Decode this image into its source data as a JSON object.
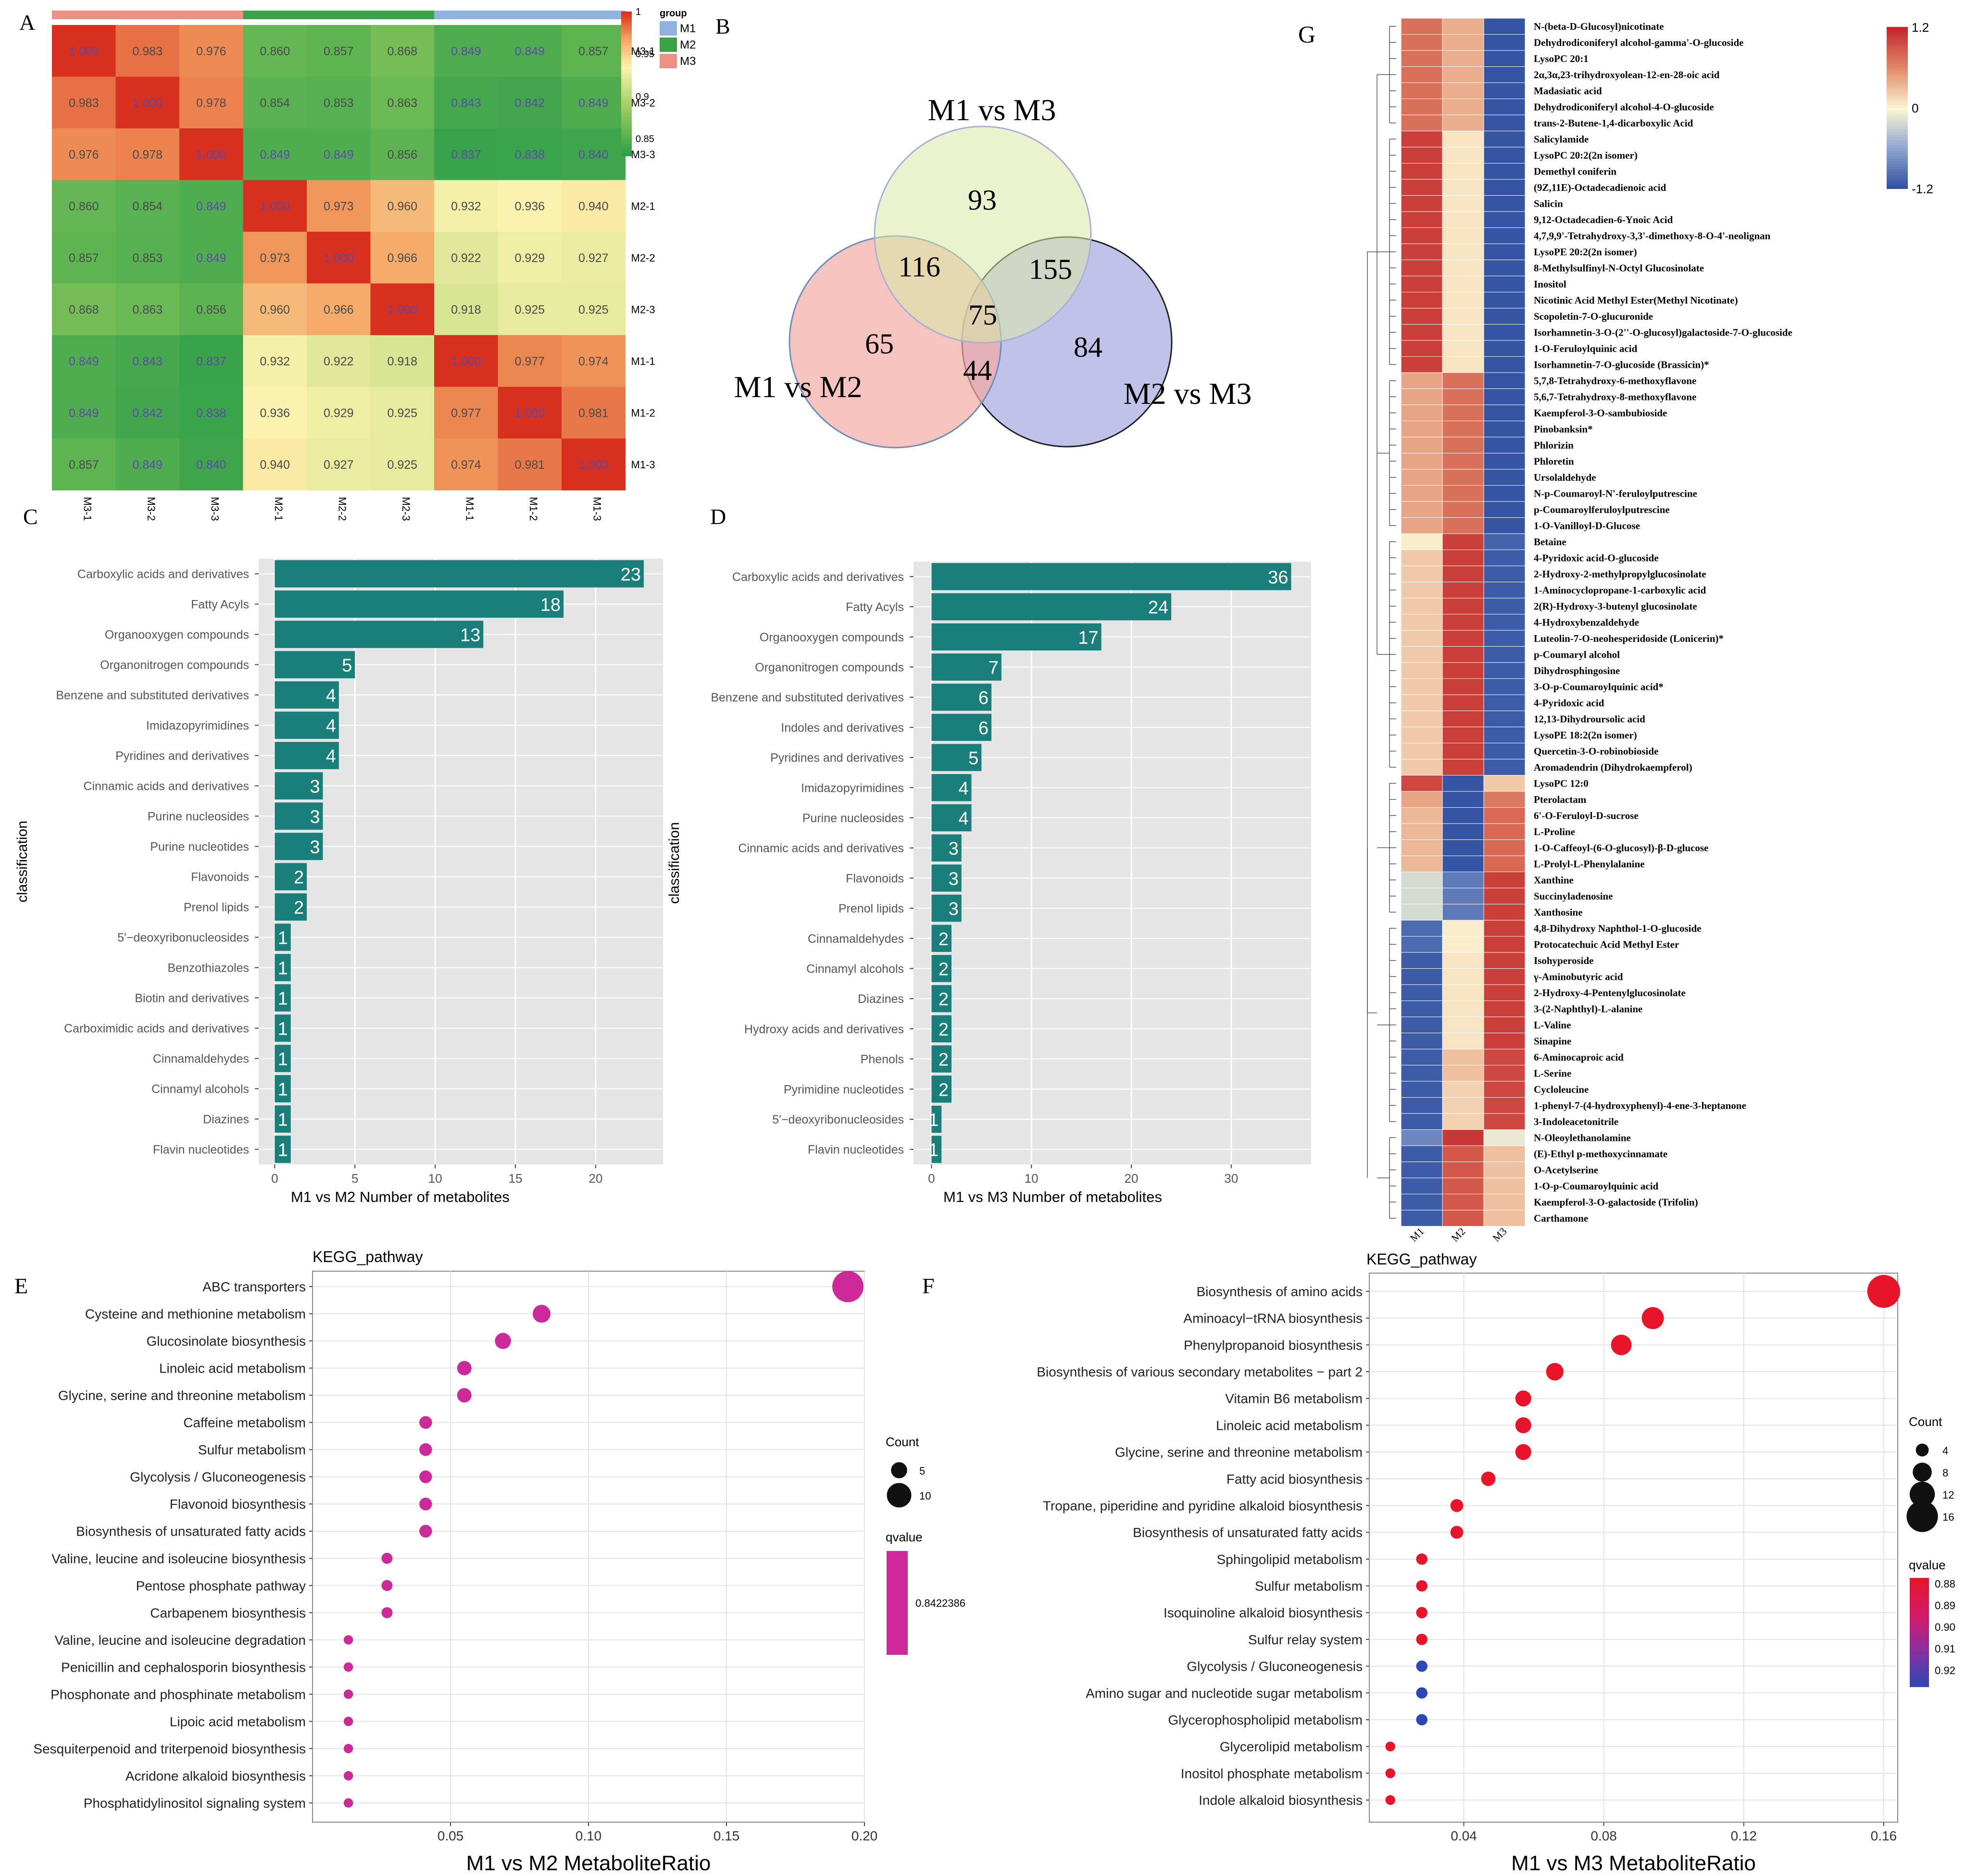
{
  "chart_data": [
    {
      "panel": "A",
      "type": "heatmap",
      "title": "",
      "rows": [
        "M3-1",
        "M3-2",
        "M3-3",
        "M2-1",
        "M2-2",
        "M2-3",
        "M1-1",
        "M1-2",
        "M1-3"
      ],
      "cols": [
        "M3-1",
        "M3-2",
        "M3-3",
        "M2-1",
        "M2-2",
        "M2-3",
        "M1-1",
        "M1-2",
        "M1-3"
      ],
      "values": [
        [
          1.0,
          0.983,
          0.976,
          0.86,
          0.857,
          0.868,
          0.849,
          0.849,
          0.857
        ],
        [
          0.983,
          1.0,
          0.978,
          0.854,
          0.853,
          0.863,
          0.843,
          0.842,
          0.849
        ],
        [
          0.976,
          0.978,
          1.0,
          0.849,
          0.849,
          0.856,
          0.837,
          0.838,
          0.84
        ],
        [
          0.86,
          0.854,
          0.849,
          1.0,
          0.973,
          0.96,
          0.932,
          0.936,
          0.94
        ],
        [
          0.857,
          0.853,
          0.849,
          0.973,
          1.0,
          0.966,
          0.922,
          0.929,
          0.927
        ],
        [
          0.868,
          0.863,
          0.856,
          0.96,
          0.966,
          1.0,
          0.918,
          0.925,
          0.925
        ],
        [
          0.849,
          0.843,
          0.837,
          0.932,
          0.922,
          0.918,
          1.0,
          0.977,
          0.974
        ],
        [
          0.849,
          0.842,
          0.838,
          0.936,
          0.929,
          0.925,
          0.977,
          1.0,
          0.981
        ],
        [
          0.857,
          0.849,
          0.84,
          0.94,
          0.927,
          0.925,
          0.974,
          0.981,
          1.0
        ]
      ],
      "value_labels": [
        [
          "1.000",
          "0.983",
          "0.976",
          "0.860",
          "0.857",
          "0.868",
          "0.849",
          "0.849",
          "0.857"
        ],
        [
          "0.983",
          "1.000",
          "0.978",
          "0.854",
          "0.853",
          "0.863",
          "0.843",
          "0.842",
          "0.849"
        ],
        [
          "0.976",
          "0.978",
          "1.000",
          "0.849",
          "0.849",
          "0.856",
          "0.837",
          "0.838",
          "0.840"
        ],
        [
          "0.860",
          "0.854",
          "0.849",
          "1.000",
          "0.973",
          "0.960",
          "0.932",
          "0.936",
          "0.940"
        ],
        [
          "0.857",
          "0.853",
          "0.849",
          "0.973",
          "1.000",
          "0.966",
          "0.922",
          "0.929",
          "0.927"
        ],
        [
          "0.868",
          "0.863",
          "0.856",
          "0.960",
          "0.966",
          "1.000",
          "0.918",
          "0.925",
          "0.925"
        ],
        [
          "0.849",
          "0.843",
          "0.837",
          "0.932",
          "0.922",
          "0.918",
          "1.000",
          "0.977",
          "0.974"
        ],
        [
          "0.849",
          "0.842",
          "0.838",
          "0.936",
          "0.929",
          "0.925",
          "0.977",
          "1.000",
          "0.981"
        ],
        [
          "0.857",
          "0.849",
          "0.840",
          "0.940",
          "0.927",
          "0.925",
          "0.974",
          "0.981",
          "1.000"
        ]
      ],
      "col_groups": [
        "M3",
        "M3",
        "M3",
        "M2",
        "M2",
        "M2",
        "M1",
        "M1",
        "M1"
      ],
      "colorbar_ticks": [
        "1",
        "0.95",
        "0.9",
        "0.85"
      ],
      "group_legend_title": "group",
      "group_legend": [
        "M1",
        "M2",
        "M3"
      ],
      "group_colors": {
        "M1": "#8fb3e0",
        "M2": "#3aa348",
        "M3": "#ee8f86"
      },
      "vlim": [
        0.83,
        1.0
      ]
    },
    {
      "panel": "B",
      "type": "venn",
      "sets": [
        "M1 vs M3",
        "M1 vs M2",
        "M2 vs M3"
      ],
      "regions": {
        "M1vsM3_only": 93,
        "M1vsM2_only": 65,
        "M2vsM3_only": 84,
        "M1vsM3_and_M1vsM2": 116,
        "M1vsM3_and_M2vsM3": 155,
        "M1vsM2_and_M2vsM3": 44,
        "all_three": 75
      },
      "colors": {
        "M1 vs M3": "#d9eaa6",
        "M1 vs M2": "#f2a9a4",
        "M2 vs M3": "#a7a8e0"
      }
    },
    {
      "panel": "C",
      "type": "bar",
      "orientation": "horizontal",
      "categories": [
        "Carboxylic acids and derivatives",
        "Fatty Acyls",
        "Organooxygen compounds",
        "Organonitrogen compounds",
        "Benzene and substituted derivatives",
        "Imidazopyrimidines",
        "Pyridines and derivatives",
        "Cinnamic acids and derivatives",
        "Purine nucleosides",
        "Purine nucleotides",
        "Flavonoids",
        "Prenol lipids",
        "5'−deoxyribonucleosides",
        "Benzothiazoles",
        "Biotin and derivatives",
        "Carboximidic acids and derivatives",
        "Cinnamaldehydes",
        "Cinnamyl alcohols",
        "Diazines",
        "Flavin nucleotides"
      ],
      "values": [
        23,
        18,
        13,
        5,
        4,
        4,
        4,
        3,
        3,
        3,
        2,
        2,
        1,
        1,
        1,
        1,
        1,
        1,
        1,
        1
      ],
      "xlabel": "M1 vs M2 Number of metabolites",
      "ylabel": "classification",
      "xticks": [
        "0",
        "5",
        "10",
        "15",
        "20"
      ],
      "xlim": [
        -1,
        24.2
      ],
      "color": "#1a7f7a"
    },
    {
      "panel": "D",
      "type": "bar",
      "orientation": "horizontal",
      "categories": [
        "Carboxylic acids and derivatives",
        "Fatty Acyls",
        "Organooxygen compounds",
        "Organonitrogen compounds",
        "Benzene and substituted derivatives",
        "Indoles and derivatives",
        "Pyridines and derivatives",
        "Imidazopyrimidines",
        "Purine nucleosides",
        "Cinnamic acids and derivatives",
        "Flavonoids",
        "Prenol lipids",
        "Cinnamaldehydes",
        "Cinnamyl alcohols",
        "Diazines",
        "Hydroxy acids and derivatives",
        "Phenols",
        "Pyrimidine nucleotides",
        "5'−deoxyribonucleosides",
        "Flavin nucleotides"
      ],
      "values": [
        36,
        24,
        17,
        7,
        6,
        6,
        5,
        4,
        4,
        3,
        3,
        3,
        2,
        2,
        2,
        2,
        2,
        2,
        1,
        1
      ],
      "xlabel": "M1 vs M3 Number of metabolites",
      "ylabel": "classification",
      "xticks": [
        "0",
        "10",
        "20",
        "30"
      ],
      "xlim": [
        -1.8,
        38
      ],
      "color": "#1a7f7a"
    },
    {
      "panel": "E",
      "type": "scatter",
      "title": "KEGG_pathway",
      "categories": [
        "ABC transporters",
        "Cysteine and methionine metabolism",
        "Glucosinolate biosynthesis",
        "Linoleic acid metabolism",
        "Glycine, serine and threonine metabolism",
        "Caffeine metabolism",
        "Sulfur metabolism",
        "Glycolysis / Gluconeogenesis",
        "Flavonoid biosynthesis",
        "Biosynthesis of unsaturated fatty acids",
        "Valine, leucine and isoleucine biosynthesis",
        "Pentose phosphate pathway",
        "Carbapenem biosynthesis",
        "Valine, leucine and isoleucine degradation",
        "Penicillin and cephalosporin biosynthesis",
        "Phosphonate and phosphinate metabolism",
        "Lipoic acid metabolism",
        "Sesquiterpenoid and triterpenoid biosynthesis",
        "Acridone alkaloid biosynthesis",
        "Phosphatidylinositol signaling system"
      ],
      "x": [
        0.194,
        0.083,
        0.069,
        0.055,
        0.055,
        0.041,
        0.041,
        0.041,
        0.041,
        0.041,
        0.027,
        0.027,
        0.027,
        0.013,
        0.013,
        0.013,
        0.013,
        0.013,
        0.013,
        0.013
      ],
      "count": [
        14,
        6,
        5,
        4,
        4,
        3,
        3,
        3,
        3,
        3,
        2,
        2,
        2,
        1,
        1,
        1,
        1,
        1,
        1,
        1
      ],
      "qvalue": 0.8422386,
      "xlabel": "M1 vs M2 MetaboliteRatio",
      "xticks": [
        "0.05",
        "0.10",
        "0.15",
        "0.20"
      ],
      "xlim": [
        0.0,
        0.2
      ],
      "size_legend_title": "Count",
      "size_legend": [
        "5",
        "10"
      ],
      "color_legend_title": "qvalue",
      "color_legend_value": "0.8422386",
      "color": "#cc2a9a"
    },
    {
      "panel": "F",
      "type": "scatter",
      "title": "KEGG_pathway",
      "categories": [
        "Biosynthesis of amino acids",
        "Aminoacyl−tRNA biosynthesis",
        "Phenylpropanoid biosynthesis",
        "Biosynthesis of various secondary metabolites − part 2",
        "Vitamin B6 metabolism",
        "Linoleic acid metabolism",
        "Glycine, serine and threonine metabolism",
        "Fatty acid biosynthesis",
        "Tropane, piperidine and pyridine alkaloid biosynthesis",
        "Biosynthesis of unsaturated fatty acids",
        "Sphingolipid metabolism",
        "Sulfur metabolism",
        "Isoquinoline alkaloid biosynthesis",
        "Sulfur relay system",
        "Glycolysis / Gluconeogenesis",
        "Amino sugar and nucleotide sugar metabolism",
        "Glycerophospholipid metabolism",
        "Glycerolipid metabolism",
        "Inositol phosphate metabolism",
        "Indole alkaloid biosynthesis"
      ],
      "x": [
        0.16,
        0.094,
        0.085,
        0.066,
        0.057,
        0.057,
        0.057,
        0.047,
        0.038,
        0.038,
        0.028,
        0.028,
        0.028,
        0.028,
        0.028,
        0.028,
        0.028,
        0.019,
        0.019,
        0.019
      ],
      "count": [
        17,
        10,
        9,
        7,
        6,
        6,
        6,
        5,
        4,
        4,
        3,
        3,
        3,
        3,
        3,
        3,
        3,
        2,
        2,
        2
      ],
      "qvalue": [
        0.876,
        0.876,
        0.876,
        0.876,
        0.876,
        0.876,
        0.876,
        0.876,
        0.876,
        0.876,
        0.876,
        0.876,
        0.876,
        0.876,
        0.925,
        0.925,
        0.925,
        0.876,
        0.876,
        0.876
      ],
      "xlabel": "M1 vs M3 MetaboliteRatio",
      "xticks": [
        "0.04",
        "0.08",
        "0.12",
        "0.16"
      ],
      "xlim": [
        0.013,
        0.164
      ],
      "size_legend_title": "Count",
      "size_legend": [
        "4",
        "8",
        "12",
        "16"
      ],
      "color_legend_title": "qvalue",
      "color_legend_ticks": [
        "0.88",
        "0.89",
        "0.90",
        "0.91",
        "0.92"
      ]
    },
    {
      "panel": "G",
      "type": "heatmap",
      "cols": [
        "M1",
        "M2",
        "M3"
      ],
      "rows": [
        "N-(beta-D-Glucosyl)nicotinate",
        "Dehydrodiconiferyl alcohol-gamma'-O-glucoside",
        "LysoPC 20:1",
        "2α,3α,23-trihydroxyolean-12-en-28-oic acid",
        "Madasiatic acid",
        "Dehydrodiconiferyl alcohol-4-O-glucoside",
        "trans-2-Butene-1,4-dicarboxylic Acid",
        "Salicylamide",
        "LysoPC 20:2(2n isomer)",
        "Demethyl coniferin",
        "(9Z,11E)-Octadecadienoic acid",
        "Salicin",
        "9,12-Octadecadien-6-Ynoic Acid",
        "4,7,9,9'-Tetrahydroxy-3,3'-dimethoxy-8-O-4'-neolignan",
        "LysoPE 20:2(2n isomer)",
        "8-Methylsulfinyl-N-Octyl Glucosinolate",
        "Inositol",
        "Nicotinic Acid Methyl Ester(Methyl Nicotinate)",
        "Scopoletin-7-O-glucuronide",
        "Isorhamnetin-3-O-(2''-O-glucosyl)galactoside-7-O-glucoside",
        "1-O-Feruloylquinic acid",
        "Isorhamnetin-7-O-glucoside (Brassicin)*",
        "5,7,8-Tetrahydroxy-6-methoxyflavone",
        "5,6,7-Tetrahydroxy-8-methoxyflavone",
        "Kaempferol-3-O-sambubioside",
        "Pinobanksin*",
        "Phlorizin",
        "Phloretin",
        "Ursolaldehyde",
        "N-p-Coumaroyl-N'-feruloylputrescine",
        "p-Coumaroylferuloylputrescine",
        "1-O-Vanilloyl-D-Glucose",
        "Betaine",
        "4-Pyridoxic acid-O-glucoside",
        "2-Hydroxy-2-methylpropylglucosinolate",
        "1-Aminocyclopropane-1-carboxylic acid",
        "2(R)-Hydroxy-3-butenyl glucosinolate",
        "4-Hydroxybenzaldehyde",
        "Luteolin-7-O-neohesperidoside (Lonicerin)*",
        "p-Coumaryl alcohol",
        "Dihydrosphingosine",
        "3-O-p-Coumaroylquinic acid*",
        "4-Pyridoxic acid",
        "12,13-Dihydroursolic acid",
        "LysoPE 18:2(2n isomer)",
        "Quercetin-3-O-robinobioside",
        "Aromadendrin (Dihydrokaempferol)",
        "LysoPC 12:0",
        "Pterolactam",
        "6'-O-Feruloyl-D-sucrose",
        "L-Proline",
        "1-O-Caffeoyl-(6-O-glucosyl)-β-D-glucose",
        "L-Prolyl-L-Phenylalanine",
        "Xanthine",
        "Succinyladenosine",
        "Xanthosine",
        "4,8-Dihydroxy Naphthol-1-O-glucoside",
        "Protocatechuic Acid Methyl Ester",
        "Isohyperoside",
        "γ-Aminobutyric acid",
        "2-Hydroxy-4-Pentenylglucosinolate",
        "3-(2-Naphthyl)-L-alanine",
        "L-Valine",
        "Sinapine",
        "6-Aminocaproic acid",
        "L-Serine",
        "Cycloleucine",
        "1-phenyl-7-(4-hydroxyphenyl)-4-ene-3-heptanone",
        "3-Indoleacetonitrile",
        "N-Oleoylethanolamine",
        "(E)-Ethyl p-methoxycinnamate",
        "O-Acetylserine",
        "1-O-p-Coumaroylquinic acid",
        "Kaempferol-3-O-galactoside (Trifolin)",
        "Carthamone"
      ],
      "values": [
        [
          0.75,
          0.4,
          -1.15
        ],
        [
          0.75,
          0.4,
          -1.15
        ],
        [
          0.75,
          0.4,
          -1.15
        ],
        [
          0.75,
          0.4,
          -1.15
        ],
        [
          0.75,
          0.4,
          -1.15
        ],
        [
          0.75,
          0.4,
          -1.15
        ],
        [
          0.75,
          0.4,
          -1.15
        ],
        [
          1.05,
          0.1,
          -1.15
        ],
        [
          1.05,
          0.1,
          -1.15
        ],
        [
          1.05,
          0.1,
          -1.15
        ],
        [
          1.05,
          0.1,
          -1.15
        ],
        [
          1.05,
          0.1,
          -1.15
        ],
        [
          1.05,
          0.1,
          -1.15
        ],
        [
          1.05,
          0.1,
          -1.15
        ],
        [
          1.05,
          0.1,
          -1.15
        ],
        [
          1.05,
          0.1,
          -1.15
        ],
        [
          1.05,
          0.1,
          -1.15
        ],
        [
          1.05,
          0.1,
          -1.15
        ],
        [
          1.05,
          0.1,
          -1.15
        ],
        [
          1.05,
          0.1,
          -1.15
        ],
        [
          1.05,
          0.1,
          -1.15
        ],
        [
          1.05,
          0.1,
          -1.15
        ],
        [
          0.45,
          0.75,
          -1.15
        ],
        [
          0.45,
          0.75,
          -1.15
        ],
        [
          0.45,
          0.75,
          -1.15
        ],
        [
          0.45,
          0.75,
          -1.15
        ],
        [
          0.45,
          0.75,
          -1.15
        ],
        [
          0.45,
          0.75,
          -1.15
        ],
        [
          0.45,
          0.75,
          -1.15
        ],
        [
          0.45,
          0.75,
          -1.15
        ],
        [
          0.45,
          0.75,
          -1.15
        ],
        [
          0.45,
          0.75,
          -1.15
        ],
        [
          0.05,
          1.05,
          -1.05
        ],
        [
          0.25,
          1.05,
          -1.1
        ],
        [
          0.25,
          1.05,
          -1.1
        ],
        [
          0.25,
          1.05,
          -1.1
        ],
        [
          0.25,
          1.05,
          -1.1
        ],
        [
          0.25,
          1.05,
          -1.1
        ],
        [
          0.25,
          1.05,
          -1.1
        ],
        [
          0.25,
          1.05,
          -1.1
        ],
        [
          0.25,
          1.05,
          -1.1
        ],
        [
          0.25,
          1.05,
          -1.1
        ],
        [
          0.25,
          1.05,
          -1.1
        ],
        [
          0.25,
          1.05,
          -1.1
        ],
        [
          0.25,
          1.05,
          -1.1
        ],
        [
          0.25,
          1.05,
          -1.1
        ],
        [
          0.25,
          1.05,
          -1.1
        ],
        [
          1.0,
          -1.15,
          0.25
        ],
        [
          0.45,
          -1.15,
          0.7
        ],
        [
          0.35,
          -1.15,
          0.8
        ],
        [
          0.35,
          -1.15,
          0.8
        ],
        [
          0.35,
          -1.15,
          0.8
        ],
        [
          0.35,
          -1.15,
          0.8
        ],
        [
          -0.2,
          -0.9,
          1.05
        ],
        [
          -0.2,
          -0.9,
          1.05
        ],
        [
          -0.2,
          -0.9,
          1.05
        ],
        [
          -1.0,
          0.05,
          1.05
        ],
        [
          -1.0,
          0.05,
          1.05
        ],
        [
          -1.1,
          0.1,
          1.05
        ],
        [
          -1.1,
          0.1,
          1.05
        ],
        [
          -1.1,
          0.1,
          1.05
        ],
        [
          -1.1,
          0.1,
          1.05
        ],
        [
          -1.1,
          0.1,
          1.05
        ],
        [
          -1.1,
          0.1,
          1.05
        ],
        [
          -1.1,
          0.3,
          1.0
        ],
        [
          -1.1,
          0.3,
          1.0
        ],
        [
          -1.1,
          0.2,
          1.0
        ],
        [
          -1.1,
          0.2,
          1.0
        ],
        [
          -1.1,
          0.2,
          1.0
        ],
        [
          -0.8,
          1.1,
          -0.1
        ],
        [
          -1.1,
          0.9,
          0.3
        ],
        [
          -1.1,
          0.9,
          0.3
        ],
        [
          -1.1,
          0.9,
          0.3
        ],
        [
          -1.1,
          0.9,
          0.3
        ],
        [
          -1.1,
          0.9,
          0.3
        ]
      ],
      "colorbar_ticks": [
        "1.2",
        "0",
        "-1.2"
      ],
      "vlim": [
        -1.2,
        1.2
      ]
    }
  ],
  "panel_letters": [
    "A",
    "B",
    "C",
    "D",
    "E",
    "F",
    "G"
  ]
}
